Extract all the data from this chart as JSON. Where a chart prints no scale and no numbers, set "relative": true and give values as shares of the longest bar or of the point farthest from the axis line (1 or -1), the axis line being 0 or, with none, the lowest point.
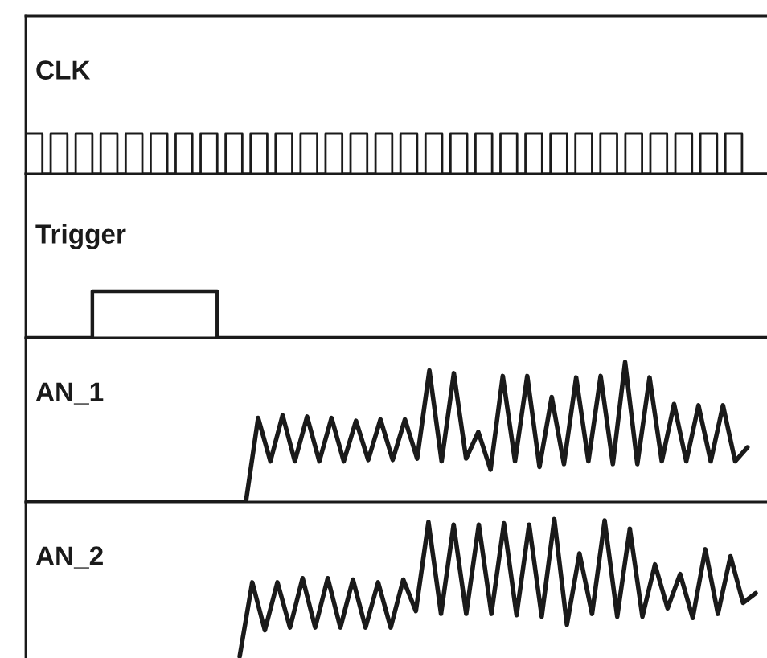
{
  "chart_data": [
    {
      "type": "step",
      "title": "CLK",
      "relative": true,
      "categories": [
        null,
        null,
        null,
        null,
        null,
        null,
        null,
        null,
        null,
        null,
        null,
        null,
        null,
        null,
        null,
        null,
        null,
        null,
        null,
        null,
        null,
        null,
        null,
        null,
        null,
        null,
        null,
        null,
        null,
        null,
        null,
        null,
        null,
        null,
        null,
        null,
        null,
        null,
        null,
        null,
        null,
        null,
        null,
        null,
        null,
        null,
        null,
        null,
        null,
        null,
        null,
        null,
        null,
        null,
        null,
        null,
        null,
        null,
        null,
        null,
        null,
        null,
        null,
        null,
        null,
        null,
        null,
        null,
        null,
        null,
        null,
        null,
        null,
        null,
        null,
        null,
        null,
        null,
        null,
        null,
        null,
        null,
        null,
        null,
        null,
        null,
        null,
        null,
        null,
        null
      ],
      "series": [
        {
          "color": "#1a1a1a",
          "values": [
            1,
            1,
            0,
            1,
            1,
            0,
            1,
            1,
            0,
            1,
            1,
            0,
            1,
            1,
            0,
            1,
            1,
            0,
            1,
            1,
            0,
            1,
            1,
            0,
            1,
            1,
            0,
            1,
            1,
            0,
            1,
            1,
            0,
            1,
            1,
            0,
            1,
            1,
            0,
            1,
            1,
            0,
            1,
            1,
            0,
            1,
            1,
            0,
            1,
            1,
            0,
            1,
            1,
            0,
            1,
            1,
            0,
            1,
            1,
            0,
            1,
            1,
            0,
            1,
            1,
            0,
            1,
            1,
            0,
            1,
            1,
            0,
            1,
            1,
            0,
            1,
            1,
            0,
            1,
            1,
            0,
            1,
            1,
            0,
            1,
            1,
            0,
            0,
            0,
            0
          ]
        }
      ]
    },
    {
      "type": "step",
      "title": "Trigger",
      "relative": true,
      "categories": [
        null,
        null,
        null,
        null,
        null,
        null,
        null,
        null,
        null,
        null,
        null,
        null,
        null,
        null,
        null,
        null,
        null,
        null,
        null,
        null,
        null,
        null,
        null,
        null,
        null,
        null,
        null,
        null,
        null,
        null,
        null,
        null,
        null,
        null,
        null,
        null,
        null,
        null,
        null,
        null,
        null,
        null,
        null,
        null,
        null,
        null,
        null,
        null,
        null,
        null,
        null,
        null,
        null,
        null,
        null,
        null,
        null,
        null,
        null,
        null,
        null,
        null,
        null,
        null,
        null,
        null,
        null,
        null,
        null,
        null,
        null,
        null,
        null,
        null,
        null,
        null,
        null,
        null,
        null,
        null,
        null,
        null,
        null,
        null,
        null,
        null,
        null,
        null,
        null,
        null
      ],
      "series": [
        {
          "color": "#1a1a1a",
          "values": [
            0,
            0,
            0,
            0,
            0,
            0,
            0,
            0,
            1,
            1,
            1,
            1,
            1,
            1,
            1,
            1,
            1,
            1,
            1,
            1,
            1,
            1,
            1,
            0,
            0,
            0,
            0,
            0,
            0,
            0,
            0,
            0,
            0,
            0,
            0,
            0,
            0,
            0,
            0,
            0,
            0,
            0,
            0,
            0,
            0,
            0,
            0,
            0,
            0,
            0,
            0,
            0,
            0,
            0,
            0,
            0,
            0,
            0,
            0,
            0,
            0,
            0,
            0,
            0,
            0,
            0,
            0,
            0,
            0,
            0,
            0,
            0,
            0,
            0,
            0,
            0,
            0,
            0,
            0,
            0,
            0,
            0,
            0,
            0,
            0,
            0,
            0,
            0,
            0,
            0
          ]
        }
      ]
    },
    {
      "type": "line",
      "title": "AN_1",
      "relative": true,
      "categories": [
        null,
        null,
        null,
        null,
        null,
        null,
        null,
        null,
        null,
        null,
        null,
        null,
        null,
        null,
        null,
        null,
        null,
        null,
        null,
        null,
        null,
        null,
        null,
        null,
        null,
        null,
        null,
        null,
        null,
        null,
        null,
        null,
        null,
        null,
        null,
        null,
        null,
        null,
        null,
        null,
        null,
        null,
        null,
        null,
        null,
        null,
        null,
        null,
        null,
        null,
        null,
        null,
        null,
        null,
        null,
        null,
        null,
        null,
        null,
        null
      ],
      "series": [
        {
          "color": "#1a1a1a",
          "values": [
            0,
            0,
            0,
            0,
            0,
            0,
            0,
            0,
            0,
            0,
            0,
            0,
            0,
            0,
            0,
            0,
            0,
            0,
            0,
            0.6,
            0.29,
            0.62,
            0.29,
            0.61,
            0.29,
            0.6,
            0.29,
            0.58,
            0.3,
            0.59,
            0.3,
            0.59,
            0.31,
            0.94,
            0.29,
            0.92,
            0.31,
            0.5,
            0.23,
            0.9,
            0.29,
            0.9,
            0.25,
            0.75,
            0.27,
            0.89,
            0.29,
            0.9,
            0.27,
            1.0,
            0.27,
            0.89,
            0.29,
            0.7,
            0.29,
            0.69,
            0.29,
            0.69,
            0.29,
            0.39
          ]
        }
      ]
    },
    {
      "type": "line",
      "title": "AN_2",
      "relative": true,
      "categories": [
        null,
        null,
        null,
        null,
        null,
        null,
        null,
        null,
        null,
        null,
        null,
        null,
        null,
        null,
        null,
        null,
        null,
        null,
        null,
        null,
        null,
        null,
        null,
        null,
        null,
        null,
        null,
        null,
        null,
        null,
        null,
        null,
        null,
        null,
        null,
        null,
        null,
        null,
        null,
        null,
        null,
        null,
        null,
        null,
        null,
        null,
        null,
        null,
        null,
        null,
        null,
        null,
        null,
        null,
        null,
        null,
        null,
        null,
        null
      ],
      "series": [
        {
          "color": "#1a1a1a",
          "values": [
            null,
            null,
            null,
            null,
            null,
            null,
            null,
            null,
            null,
            null,
            null,
            null,
            null,
            null,
            null,
            null,
            null,
            0,
            0.54,
            0.19,
            0.54,
            0.21,
            0.57,
            0.21,
            0.57,
            0.21,
            0.56,
            0.21,
            0.54,
            0.21,
            0.56,
            0.33,
            0.98,
            0.31,
            0.96,
            0.31,
            0.96,
            0.31,
            0.97,
            0.3,
            0.96,
            0.29,
            1.0,
            0.23,
            0.75,
            0.31,
            0.99,
            0.29,
            0.93,
            0.29,
            0.67,
            0.35,
            0.6,
            0.28,
            0.78,
            0.31,
            0.73,
            0.39,
            0.46
          ]
        }
      ]
    }
  ]
}
